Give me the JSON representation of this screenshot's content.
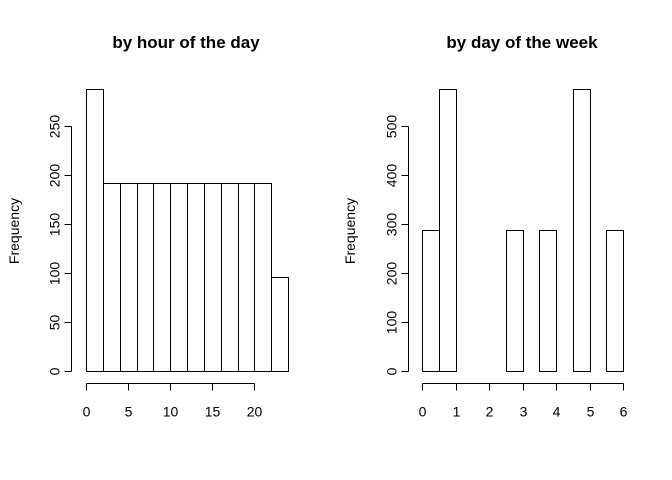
{
  "chart_data": [
    {
      "type": "bar",
      "subtype": "histogram",
      "title": "by hour of the day",
      "xlabel": "",
      "ylabel": "Frequency",
      "bins": [
        {
          "from": 0,
          "to": 2,
          "count": 288
        },
        {
          "from": 2,
          "to": 4,
          "count": 192
        },
        {
          "from": 4,
          "to": 6,
          "count": 192
        },
        {
          "from": 6,
          "to": 8,
          "count": 192
        },
        {
          "from": 8,
          "to": 10,
          "count": 192
        },
        {
          "from": 10,
          "to": 12,
          "count": 192
        },
        {
          "from": 12,
          "to": 14,
          "count": 192
        },
        {
          "from": 14,
          "to": 16,
          "count": 192
        },
        {
          "from": 16,
          "to": 18,
          "count": 192
        },
        {
          "from": 18,
          "to": 20,
          "count": 192
        },
        {
          "from": 20,
          "to": 22,
          "count": 192
        },
        {
          "from": 22,
          "to": 24,
          "count": 96
        }
      ],
      "xlim": [
        0,
        24
      ],
      "ylim": [
        0,
        288
      ],
      "xticks": [
        0,
        5,
        10,
        15,
        20
      ],
      "xtick_labels": [
        "0",
        "5",
        "10",
        "15",
        "20"
      ],
      "yticks": [
        0,
        50,
        100,
        150,
        200,
        250
      ],
      "ytick_labels": [
        "0",
        "50",
        "100",
        "150",
        "200",
        "250"
      ],
      "grid": false
    },
    {
      "type": "bar",
      "subtype": "histogram",
      "title": "by day of the week",
      "xlabel": "",
      "ylabel": "Frequency",
      "bins": [
        {
          "from": 0,
          "to": 0.5,
          "count": 288
        },
        {
          "from": 0.5,
          "to": 1,
          "count": 576
        },
        {
          "from": 1,
          "to": 1.5,
          "count": 0
        },
        {
          "from": 1.5,
          "to": 2,
          "count": 0
        },
        {
          "from": 2,
          "to": 2.5,
          "count": 0
        },
        {
          "from": 2.5,
          "to": 3,
          "count": 288
        },
        {
          "from": 3,
          "to": 3.5,
          "count": 0
        },
        {
          "from": 3.5,
          "to": 4,
          "count": 288
        },
        {
          "from": 4,
          "to": 4.5,
          "count": 0
        },
        {
          "from": 4.5,
          "to": 5,
          "count": 576
        },
        {
          "from": 5,
          "to": 5.5,
          "count": 0
        },
        {
          "from": 5.5,
          "to": 6,
          "count": 288
        }
      ],
      "xlim": [
        0,
        6
      ],
      "ylim": [
        0,
        576
      ],
      "xticks": [
        0,
        1,
        2,
        3,
        4,
        5,
        6
      ],
      "xtick_labels": [
        "0",
        "1",
        "2",
        "3",
        "4",
        "5",
        "6"
      ],
      "yticks": [
        0,
        100,
        200,
        300,
        400,
        500
      ],
      "ytick_labels": [
        "0",
        "100",
        "200",
        "300",
        "400",
        "500"
      ],
      "grid": false
    }
  ]
}
